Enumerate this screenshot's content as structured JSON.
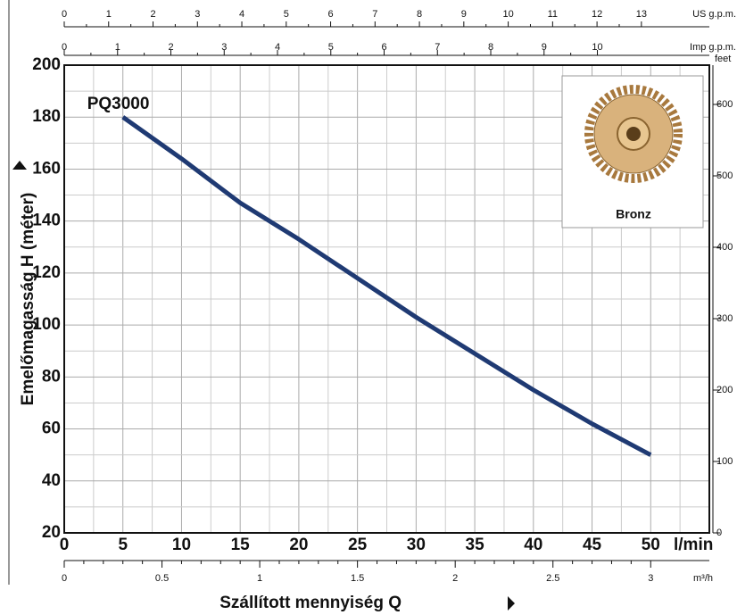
{
  "chart_data": {
    "type": "line",
    "x_label": "Szállított mennyiség Q",
    "y_label": "Emelőmagasság H  (méter)",
    "x_unit": "l/min",
    "xlim": [
      0,
      55
    ],
    "xticks": [
      0,
      5,
      10,
      15,
      20,
      25,
      30,
      35,
      40,
      45,
      50
    ],
    "ylim": [
      20,
      200
    ],
    "yticks": [
      20,
      40,
      60,
      80,
      100,
      120,
      140,
      160,
      180,
      200
    ],
    "grid": true,
    "series": [
      {
        "name": "PQ3000",
        "color": "#1f3a73",
        "x": [
          5,
          10,
          15,
          20,
          25,
          30,
          35,
          40,
          45,
          50
        ],
        "values": [
          180,
          164,
          147,
          133,
          118,
          103,
          89,
          75,
          62,
          50
        ]
      }
    ],
    "y2_label": "feet",
    "y2lim": [
      0,
      655
    ],
    "y2ticks": [
      0,
      100,
      200,
      300,
      400,
      500,
      600
    ],
    "top_axes": [
      {
        "label": "US g.p.m.",
        "lim": [
          0,
          14.53
        ],
        "ticks": [
          0,
          1,
          2,
          3,
          4,
          5,
          6,
          7,
          8,
          9,
          10,
          11,
          12,
          13
        ]
      },
      {
        "label": "Imp g.p.m.",
        "lim": [
          0,
          12.1
        ],
        "ticks": [
          0,
          1,
          2,
          3,
          4,
          5,
          6,
          7,
          8,
          9,
          10
        ]
      }
    ],
    "bottom_axis": {
      "label": "m³/h",
      "lim": [
        0,
        3.3
      ],
      "ticks": [
        0,
        0.5,
        1,
        1.5,
        2,
        2.5,
        3
      ]
    },
    "inset_label": "Bronz"
  }
}
